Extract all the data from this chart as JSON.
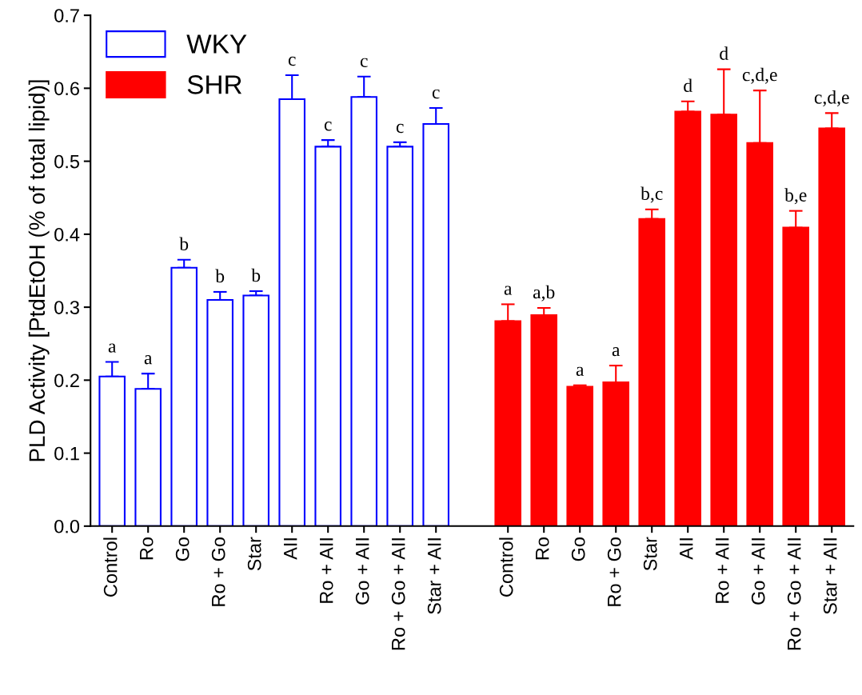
{
  "chart_data": {
    "type": "bar",
    "ylabel": "PLD Activity [PtdEtOH (% of total lipid)]",
    "categories": [
      "Control",
      "Ro",
      "Go",
      "Ro + Go",
      "Star",
      "AII",
      "Ro + AII",
      "Go + AII",
      "Ro + Go + AII",
      "Star + AII",
      null,
      "Control",
      "Ro",
      "Go",
      "Ro + Go",
      "Star",
      "AII",
      "Ro + AII",
      "Go + AII",
      "Ro + Go + AII",
      "Star + AII"
    ],
    "series": [
      {
        "name": "WKY",
        "color": "#0000ff",
        "values": [
          0.205,
          0.188,
          0.354,
          0.31,
          0.316,
          0.585,
          0.52,
          0.588,
          0.52,
          0.551,
          null,
          null,
          null,
          null,
          null,
          null,
          null,
          null,
          null,
          null,
          null
        ],
        "errors": [
          [
            0.205,
            0.225
          ],
          [
            0.188,
            0.209
          ],
          [
            0.354,
            0.365
          ],
          [
            0.31,
            0.321
          ],
          [
            0.316,
            0.322
          ],
          [
            0.585,
            0.618
          ],
          [
            0.52,
            0.529
          ],
          [
            0.588,
            0.616
          ],
          [
            0.52,
            0.526
          ],
          [
            0.551,
            0.573
          ],
          null,
          null,
          null,
          null,
          null,
          null,
          null,
          null,
          null,
          null,
          null
        ],
        "value_labels": [
          "a",
          "a",
          "b",
          "b",
          "b",
          "c",
          "c",
          "c",
          "c",
          "c",
          null,
          null,
          null,
          null,
          null,
          null,
          null,
          null,
          null,
          null,
          null
        ]
      },
      {
        "name": "SHR",
        "color": "#ff0000",
        "values": [
          null,
          null,
          null,
          null,
          null,
          null,
          null,
          null,
          null,
          null,
          null,
          0.281,
          0.289,
          0.191,
          0.197,
          0.421,
          0.568,
          0.564,
          0.525,
          0.409,
          0.545
        ],
        "errors": [
          null,
          null,
          null,
          null,
          null,
          null,
          null,
          null,
          null,
          null,
          null,
          [
            0.281,
            0.304
          ],
          [
            0.289,
            0.299
          ],
          [
            0.191,
            0.193
          ],
          [
            0.197,
            0.22
          ],
          [
            0.421,
            0.434
          ],
          [
            0.568,
            0.582
          ],
          [
            0.564,
            0.626
          ],
          [
            0.525,
            0.597
          ],
          [
            0.409,
            0.432
          ],
          [
            0.545,
            0.566
          ]
        ],
        "value_labels": [
          null,
          null,
          null,
          null,
          null,
          null,
          null,
          null,
          null,
          null,
          null,
          "a",
          "a,b",
          "a",
          "a",
          "b,c",
          "d",
          "d",
          "c,d,e",
          "b,e",
          "c,d,e"
        ]
      }
    ],
    "ylim": [
      0.0,
      0.7
    ],
    "yticks": [
      {
        "value": 0,
        "label": "0.0"
      },
      0.1,
      0.2,
      0.3,
      0.4,
      0.5,
      0.6,
      0.7
    ],
    "grid": false,
    "legend": "top left"
  }
}
